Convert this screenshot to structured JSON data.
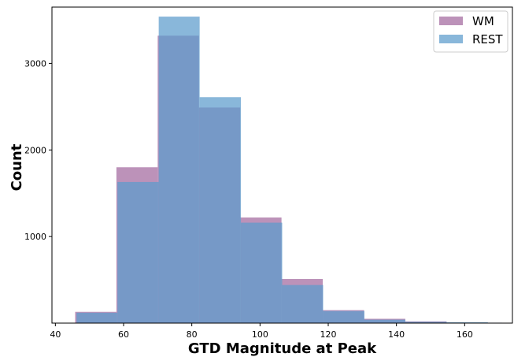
{
  "chart_data": {
    "type": "histogram",
    "title": "",
    "xlabel": "GTD Magnitude at Peak",
    "ylabel": "Count",
    "xlim": [
      39,
      174
    ],
    "ylim": [
      0,
      3650
    ],
    "xticks": [
      40,
      60,
      80,
      100,
      120,
      140,
      160
    ],
    "yticks": [
      1000,
      2000,
      3000
    ],
    "xtick_labels": [
      "40",
      "60",
      "80",
      "100",
      "120",
      "140",
      "160"
    ],
    "ytick_labels": [
      "1000",
      "2000",
      "3000"
    ],
    "grid": false,
    "legend_position": "top-right",
    "series": [
      {
        "name": "WM",
        "color": "#a66ea1",
        "opacity": 0.75,
        "bins": [
          {
            "x0": 45.8,
            "x1": 57.9,
            "count": 130
          },
          {
            "x0": 57.9,
            "x1": 70.0,
            "count": 1800
          },
          {
            "x0": 70.0,
            "x1": 82.1,
            "count": 3320
          },
          {
            "x0": 82.1,
            "x1": 94.2,
            "count": 2490
          },
          {
            "x0": 94.2,
            "x1": 106.3,
            "count": 1220
          },
          {
            "x0": 106.3,
            "x1": 118.4,
            "count": 510
          },
          {
            "x0": 118.4,
            "x1": 130.5,
            "count": 150
          },
          {
            "x0": 130.5,
            "x1": 142.6,
            "count": 50
          },
          {
            "x0": 142.6,
            "x1": 154.7,
            "count": 20
          },
          {
            "x0": 154.7,
            "x1": 166.8,
            "count": 5
          }
        ]
      },
      {
        "name": "REST",
        "color": "#5b9bcc",
        "opacity": 0.72,
        "bins": [
          {
            "x0": 46.2,
            "x1": 58.2,
            "count": 120
          },
          {
            "x0": 58.2,
            "x1": 70.3,
            "count": 1630
          },
          {
            "x0": 70.3,
            "x1": 82.3,
            "count": 3540
          },
          {
            "x0": 82.3,
            "x1": 94.4,
            "count": 2610
          },
          {
            "x0": 94.4,
            "x1": 106.5,
            "count": 1160
          },
          {
            "x0": 106.5,
            "x1": 118.5,
            "count": 440
          },
          {
            "x0": 118.5,
            "x1": 130.6,
            "count": 140
          },
          {
            "x0": 130.6,
            "x1": 142.6,
            "count": 40
          },
          {
            "x0": 142.6,
            "x1": 154.7,
            "count": 15
          },
          {
            "x0": 154.7,
            "x1": 166.8,
            "count": 10
          },
          {
            "x0": 166.8,
            "x1": 171.0,
            "count": 5
          }
        ]
      }
    ]
  }
}
